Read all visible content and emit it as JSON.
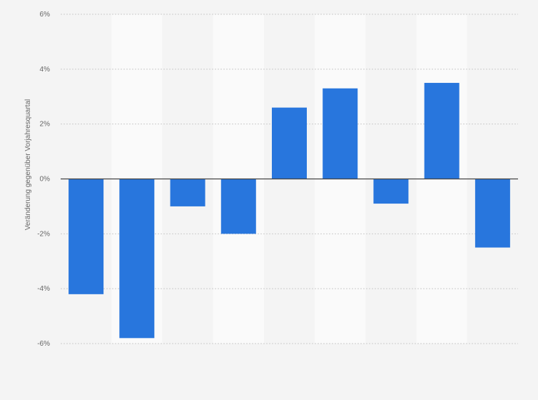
{
  "chart_data": {
    "type": "bar",
    "title": "",
    "xlabel": "",
    "ylabel": "Veränderung gegenüber Vorjahresquartal",
    "ylim": [
      -6,
      6
    ],
    "yticks": [
      "6%",
      "4%",
      "2%",
      "0%",
      "-2%",
      "-4%",
      "-6%"
    ],
    "ytick_values": [
      6,
      4,
      2,
      0,
      -2,
      -4,
      -6
    ],
    "grid": true,
    "categories": [
      "",
      "",
      "",
      "",
      "",
      "",
      "",
      "",
      ""
    ],
    "values": [
      -4.2,
      -5.8,
      -1.0,
      -2.0,
      2.6,
      3.3,
      -0.9,
      3.5,
      -2.5
    ],
    "colors": {
      "bar": "#2876dd",
      "zero_line": "#444444",
      "grid": "#cccccc",
      "band": "#fafafa",
      "background": "#f4f4f4"
    }
  }
}
